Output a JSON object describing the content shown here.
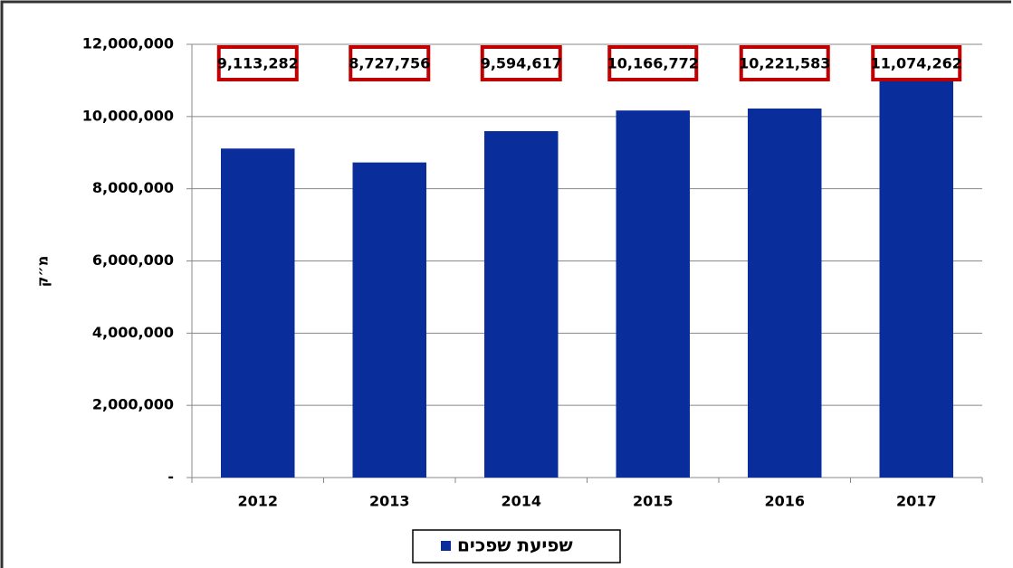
{
  "chart_data": {
    "type": "bar",
    "y_label": "מ״ק",
    "categories": [
      "2012",
      "2013",
      "2014",
      "2015",
      "2016",
      "2017"
    ],
    "series": [
      {
        "name": "שפיעת שפכים",
        "color": "#0a2d9c",
        "values": [
          9113282,
          8727756,
          9594617,
          10166772,
          10221583,
          11074262
        ],
        "value_labels": [
          "9,113,282",
          "8,727,756",
          "9,594,617",
          "10,166,772",
          "10,221,583",
          "11,074,262"
        ]
      }
    ],
    "ylim": [
      0,
      12000000
    ],
    "yticks": [
      {
        "value": 0,
        "label": "-"
      },
      {
        "value": 2000000,
        "label": "2,000,000"
      },
      {
        "value": 4000000,
        "label": "4,000,000"
      },
      {
        "value": 6000000,
        "label": "6,000,000"
      },
      {
        "value": 8000000,
        "label": "8,000,000"
      },
      {
        "value": 10000000,
        "label": "10,000,000"
      },
      {
        "value": 12000000,
        "label": "12,000,000"
      }
    ],
    "grid": true,
    "legend": "bottom",
    "label_box_color": "#c00000"
  }
}
